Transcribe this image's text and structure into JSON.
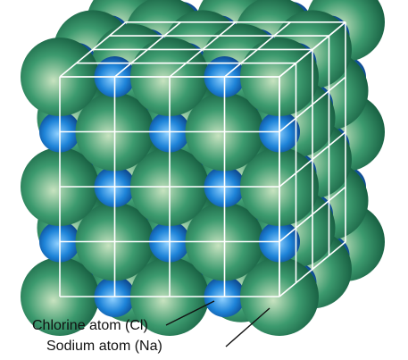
{
  "labels": {
    "chlorine": "Chlorine atom (Cl)",
    "sodium": "Sodium atom (Na)"
  },
  "colors": {
    "chlorine_light": "#c8e3c0",
    "chlorine_mid": "#3c9a6e",
    "chlorine_dark": "#175e41",
    "sodium_light": "#8fd0ff",
    "sodium_mid": "#1d83d8",
    "sodium_dark": "#0b3f83",
    "lattice_lines": "#ffffff",
    "leader_lines": "#111111"
  },
  "icons": {
    "chlorine": "green-sphere-icon",
    "sodium": "blue-sphere-icon"
  }
}
